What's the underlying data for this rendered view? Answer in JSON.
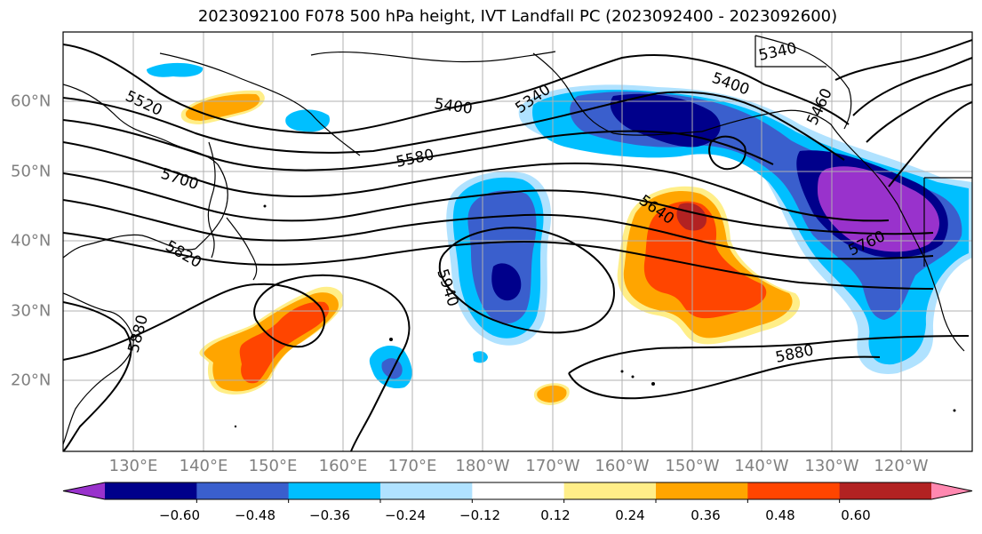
{
  "title": "2023092100 F078 500 hPa height, IVT Landfall PC (2023092400 - 2023092600)",
  "lat_labels": [
    "60°N",
    "50°N",
    "40°N",
    "30°N",
    "20°N"
  ],
  "lon_labels": [
    "130°E",
    "140°E",
    "150°E",
    "160°E",
    "170°E",
    "180°W",
    "170°W",
    "160°W",
    "150°W",
    "140°W",
    "130°W",
    "120°W"
  ],
  "contour_labels": [
    "5340",
    "5340",
    "5400",
    "5400",
    "5460",
    "5520",
    "5580",
    "5640",
    "5700",
    "5760",
    "5820",
    "5880",
    "5880",
    "5940"
  ],
  "colorbar": {
    "ticks": [
      "−0.60",
      "−0.48",
      "−0.36",
      "−0.24",
      "−0.12",
      "0.12",
      "0.24",
      "0.36",
      "0.48",
      "0.60"
    ],
    "colors": [
      "#9932cc",
      "#00008b",
      "#3a5fcd",
      "#00bfff",
      "#b0e2ff",
      "#ffffff",
      "#ffee88",
      "#ffa500",
      "#ff4500",
      "#b22222",
      "#ff88b0"
    ]
  },
  "colors": {
    "strong_neg": "#9932cc",
    "neg_4": "#00008b",
    "neg_3": "#3a5fcd",
    "neg_2": "#00bfff",
    "neg_1": "#b0e2ff",
    "pos_1": "#ffee88",
    "pos_2": "#ffa500",
    "pos_3": "#ff4500",
    "pos_4": "#b22222",
    "grid": "#b0b0b0",
    "contour": "#000000"
  }
}
